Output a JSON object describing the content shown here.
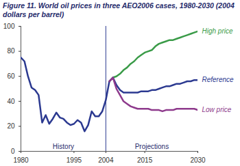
{
  "chart_data": {
    "type": "line",
    "title": "Figure 11. World oil prices in three AEO2006 cases, 1980-2030 (2004 dollars per barrel)",
    "x": [
      1980,
      1981,
      1982,
      1983,
      1984,
      1985,
      1986,
      1987,
      1988,
      1989,
      1990,
      1991,
      1992,
      1993,
      1994,
      1995,
      1996,
      1997,
      1998,
      1999,
      2000,
      2001,
      2002,
      2003,
      2004,
      2005,
      2006,
      2007,
      2008,
      2009,
      2010,
      2011,
      2012,
      2013,
      2014,
      2015,
      2016,
      2017,
      2018,
      2019,
      2020,
      2021,
      2022,
      2023,
      2024,
      2025,
      2026,
      2027,
      2028,
      2029,
      2030
    ],
    "series": [
      {
        "name": "History",
        "color": "#2b3990",
        "values": [
          75,
          72,
          60,
          51,
          49,
          45,
          23,
          29,
          22,
          26,
          31,
          27,
          26,
          23,
          21,
          22,
          25,
          23,
          16,
          21,
          32,
          28,
          28,
          32,
          41,
          56,
          null,
          null,
          null,
          null,
          null,
          null,
          null,
          null,
          null,
          null,
          null,
          null,
          null,
          null,
          null,
          null,
          null,
          null,
          null,
          null,
          null,
          null,
          null,
          null,
          null
        ]
      },
      {
        "name": "High price",
        "color": "#3a9b48",
        "values": [
          null,
          null,
          null,
          null,
          null,
          null,
          null,
          null,
          null,
          null,
          null,
          null,
          null,
          null,
          null,
          null,
          null,
          null,
          null,
          null,
          null,
          null,
          null,
          null,
          null,
          56,
          59,
          60,
          62,
          65,
          67,
          70,
          72,
          75,
          77,
          79,
          80,
          81,
          84,
          86,
          87,
          88,
          89,
          89,
          90,
          91,
          92,
          93,
          94,
          95,
          96
        ]
      },
      {
        "name": "Reference",
        "color": "#2b3990",
        "values": [
          null,
          null,
          null,
          null,
          null,
          null,
          null,
          null,
          null,
          null,
          null,
          null,
          null,
          null,
          null,
          null,
          null,
          null,
          null,
          null,
          null,
          null,
          null,
          null,
          null,
          56,
          59,
          53,
          49,
          47,
          47,
          47,
          47,
          47,
          48,
          48,
          48,
          49,
          49,
          50,
          51,
          52,
          52,
          53,
          54,
          54,
          55,
          56,
          56,
          57,
          57
        ]
      },
      {
        "name": "Low price",
        "color": "#8e3a8c",
        "values": [
          null,
          null,
          null,
          null,
          null,
          null,
          null,
          null,
          null,
          null,
          null,
          null,
          null,
          null,
          null,
          null,
          null,
          null,
          null,
          null,
          null,
          null,
          null,
          null,
          null,
          56,
          59,
          50,
          45,
          40,
          38,
          36,
          35,
          34,
          34,
          34,
          34,
          33,
          33,
          33,
          32,
          33,
          33,
          33,
          34,
          34,
          34,
          34,
          34,
          34,
          33
        ]
      }
    ],
    "annotations": [
      "Projections"
    ],
    "divider": 2004,
    "xlim": [
      1980,
      2030
    ],
    "xticks": [
      1980,
      1995,
      2004,
      2015,
      2030
    ],
    "ylim": [
      0,
      100
    ],
    "yticks": [
      0,
      20,
      40,
      60,
      80,
      100
    ],
    "grid": false
  }
}
